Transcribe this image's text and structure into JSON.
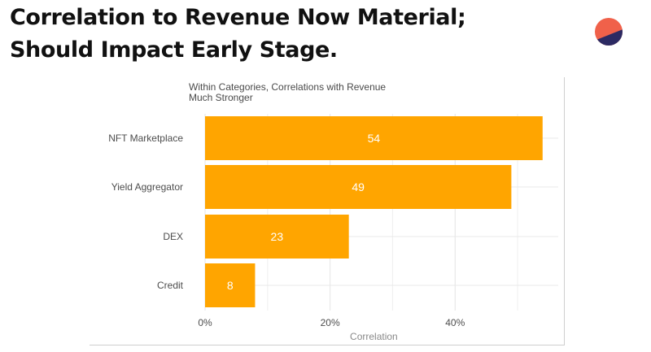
{
  "slide": {
    "title_lines": [
      "Correlation to Revenue Now Material;",
      "Should Impact Early Stage."
    ]
  },
  "logo": {
    "icon": "split-circle-logo-icon",
    "colors": [
      "#f0614a",
      "#2c2a63"
    ]
  },
  "chart_data": {
    "type": "bar",
    "orientation": "horizontal",
    "title_lines": [
      "Within Categories, Correlations with Revenue",
      "Much Stronger"
    ],
    "categories": [
      "NFT Marketplace",
      "Yield Aggregator",
      "DEX",
      "Credit"
    ],
    "values": [
      54,
      49,
      23,
      8
    ],
    "data_labels": [
      "54",
      "49",
      "23",
      "8"
    ],
    "value_axis": {
      "label": "Correlation",
      "range": [
        0,
        0.565
      ],
      "ticks": [
        0,
        0.2,
        0.4
      ],
      "tick_labels": [
        "0%",
        "20%",
        "40%"
      ]
    },
    "grid": true,
    "bar_color": "#ffa500",
    "label_color": "#ffffff"
  }
}
